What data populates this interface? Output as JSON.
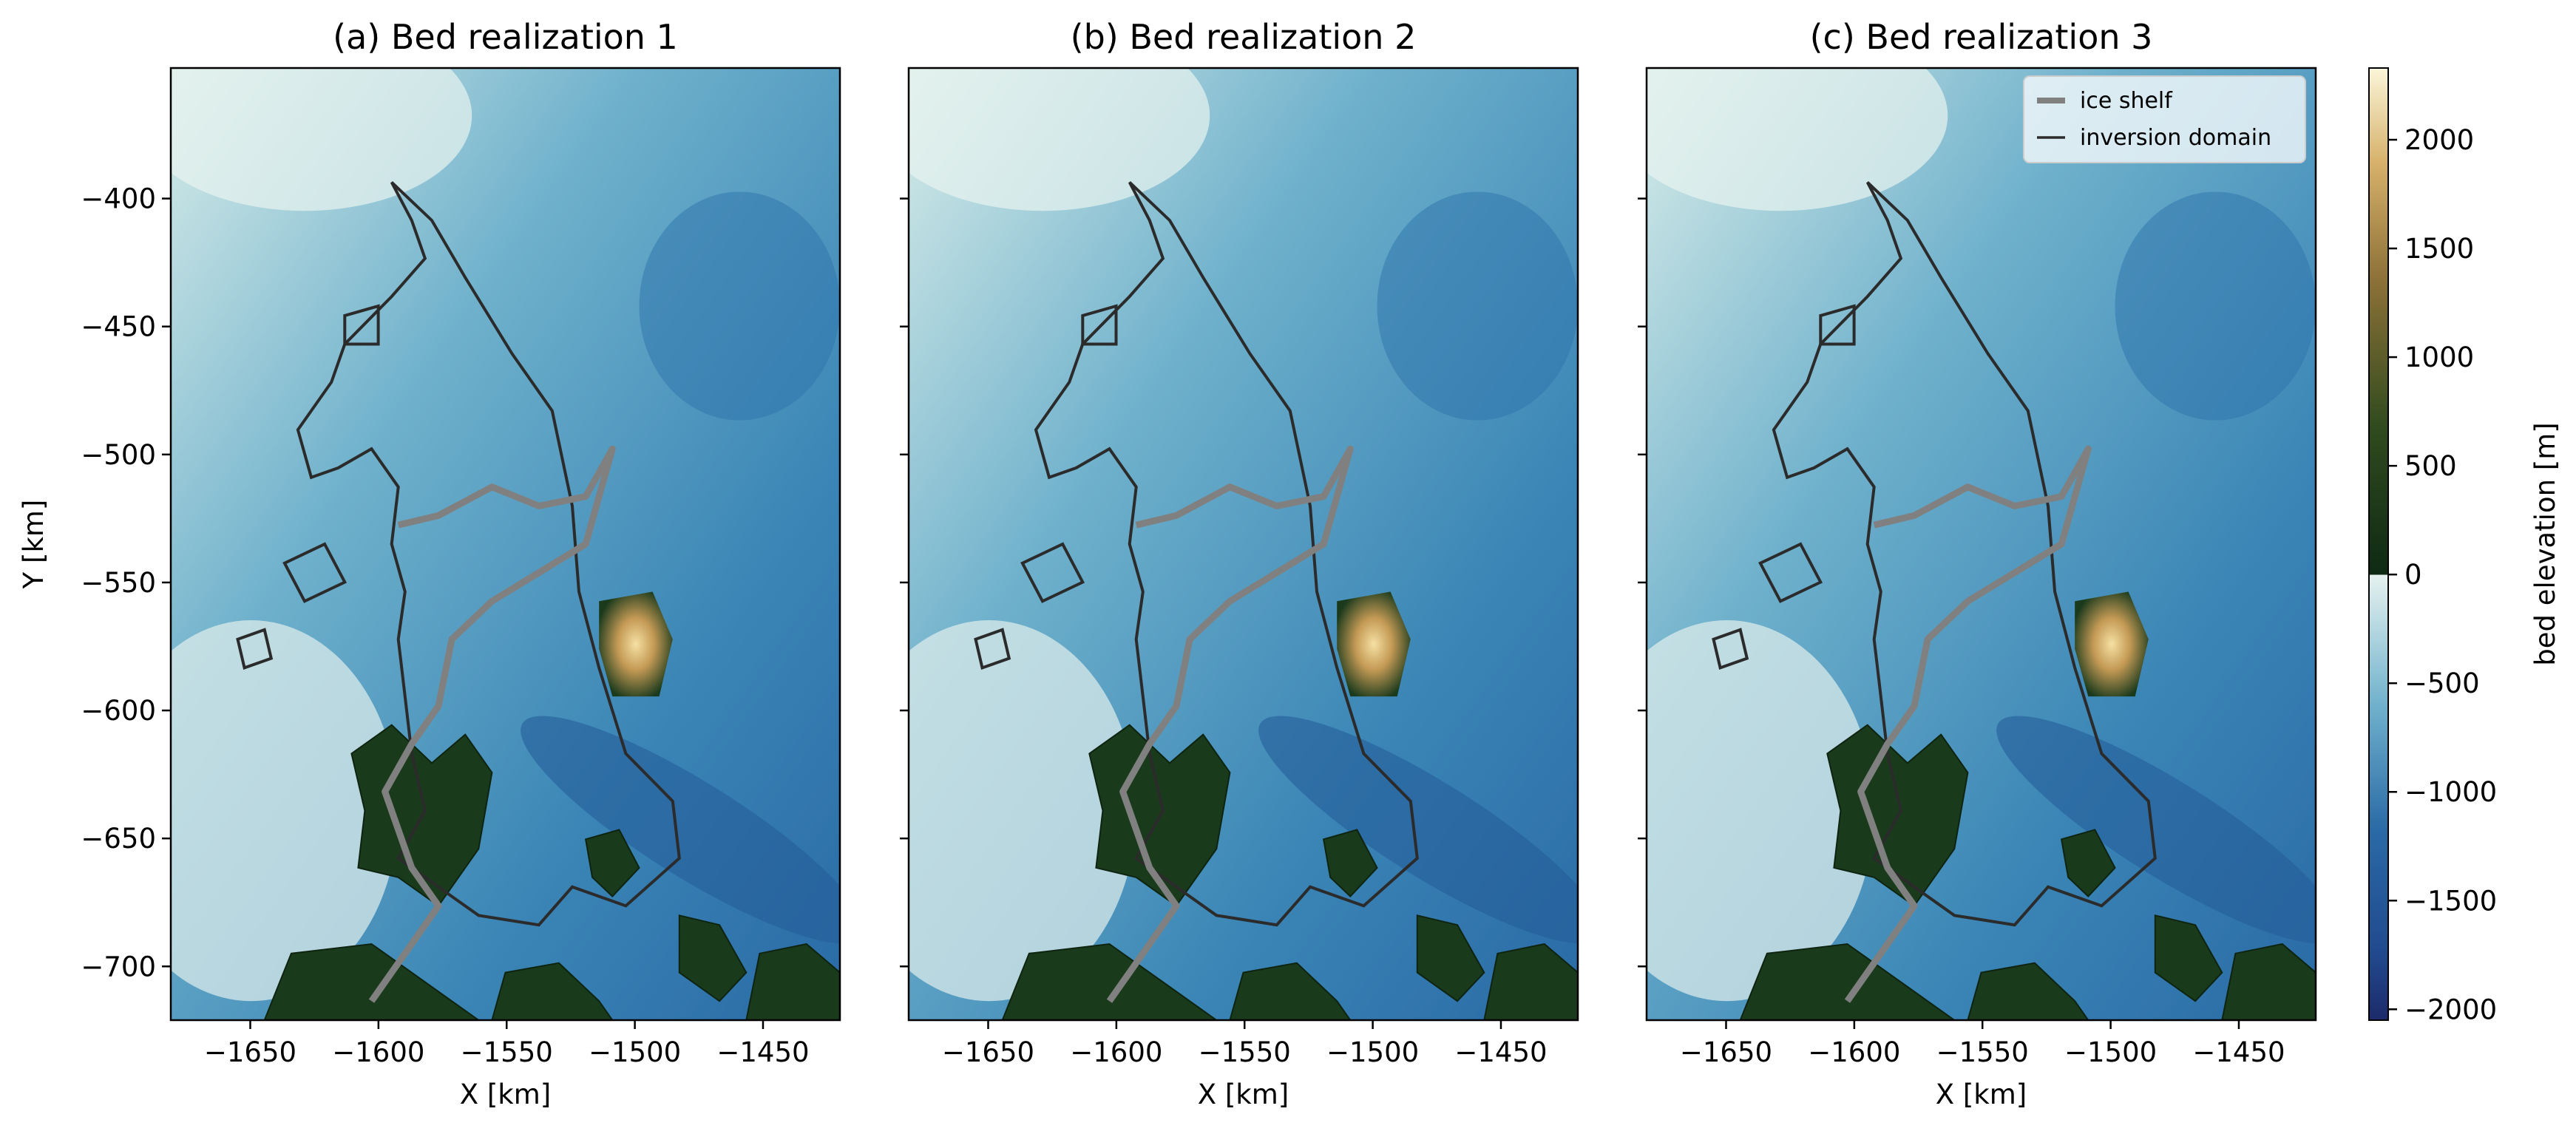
{
  "figure": {
    "panels": [
      {
        "title": "(a) Bed realization 1",
        "show_ylabel": true
      },
      {
        "title": "(b) Bed realization 2",
        "show_ylabel": false
      },
      {
        "title": "(c) Bed realization 3",
        "show_ylabel": false
      }
    ],
    "legend": {
      "placement": "top-right of panel (c)",
      "items": [
        {
          "label": "ice shelf",
          "color": "#808080",
          "style": "thick"
        },
        {
          "label": "inversion domain",
          "color": "#2b2b2b",
          "style": "thin"
        }
      ]
    },
    "colorbar": {
      "label": "bed elevation [m]",
      "range": [
        -2050,
        2330
      ],
      "ticks": [
        -2000,
        -1500,
        -1000,
        -500,
        0,
        500,
        1000,
        1500,
        2000
      ],
      "tick_labels": [
        "−2000",
        "−1500",
        "−1000",
        "−500",
        "0",
        "500",
        "1000",
        "1500",
        "2000"
      ],
      "colors_below_sea_level": [
        "#1d2a6a",
        "#2a6aa6",
        "#6fb1cc",
        "#e6f2ef"
      ],
      "colors_above_sea_level": [
        "#0e2a14",
        "#3d5c24",
        "#b08a47",
        "#fbf6da"
      ]
    }
  },
  "chart_data": [
    {
      "type": "heatmap",
      "title": "(a) Bed realization 1",
      "xlabel": "X [km]",
      "ylabel": "Y [km]",
      "xlim": [
        -1681,
        -1420
      ],
      "ylim": [
        -721,
        -349
      ],
      "xticks": [
        -1650,
        -1600,
        -1550,
        -1500,
        -1450
      ],
      "yticks": [
        -400,
        -450,
        -500,
        -550,
        -600,
        -650,
        -700
      ],
      "xtick_labels": [
        "−1650",
        "−1600",
        "−1550",
        "−1500",
        "−1450"
      ],
      "ytick_labels": [
        "−400",
        "−450",
        "−500",
        "−550",
        "−600",
        "−650",
        "−700"
      ],
      "value_label": "bed elevation [m]",
      "value_range": [
        -2050,
        2330
      ]
    },
    {
      "type": "heatmap",
      "title": "(b) Bed realization 2",
      "xlabel": "X [km]",
      "ylabel": "",
      "xlim": [
        -1681,
        -1420
      ],
      "ylim": [
        -721,
        -349
      ],
      "xticks": [
        -1650,
        -1600,
        -1550,
        -1500,
        -1450
      ],
      "yticks": [
        -400,
        -450,
        -500,
        -550,
        -600,
        -650,
        -700
      ],
      "xtick_labels": [
        "−1650",
        "−1600",
        "−1550",
        "−1500",
        "−1450"
      ],
      "ytick_labels": [],
      "value_label": "bed elevation [m]",
      "value_range": [
        -2050,
        2330
      ]
    },
    {
      "type": "heatmap",
      "title": "(c) Bed realization 3",
      "xlabel": "X [km]",
      "ylabel": "",
      "xlim": [
        -1681,
        -1420
      ],
      "ylim": [
        -721,
        -349
      ],
      "xticks": [
        -1650,
        -1600,
        -1550,
        -1500,
        -1450
      ],
      "yticks": [
        -400,
        -450,
        -500,
        -550,
        -600,
        -650,
        -700
      ],
      "xtick_labels": [
        "−1650",
        "−1600",
        "−1550",
        "−1500",
        "−1450"
      ],
      "ytick_labels": [],
      "value_label": "bed elevation [m]",
      "value_range": [
        -2050,
        2330
      ]
    }
  ]
}
